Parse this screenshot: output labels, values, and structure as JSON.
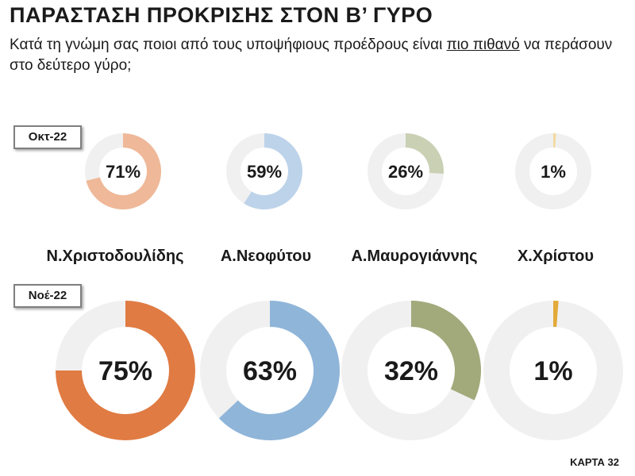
{
  "title": "ΠΑΡΑΣΤΑΣΗ ΠΡΟΚΡΙΣΗΣ ΣΤΟΝ Β’ ΓΥΡΟ",
  "subtitle": {
    "before": "Κατά τη γνώμη σας ποιοι από τους υποψήφιους προέδρους είναι ",
    "underlined": "πιο πιθανό",
    "after": " να περάσουν στο δεύτερο γύρο;"
  },
  "footer": "ΚΑΡΤΑ 32",
  "track_color": "#f0f0f0",
  "chart_data": {
    "type": "donut",
    "periods": [
      "Οκτ-22",
      "Νοέ-22"
    ],
    "candidates": [
      {
        "name": "Ν.Χριστοδουλίδης",
        "color_oct": "#efb898",
        "color_nov": "#e07b43",
        "values": [
          71,
          75
        ],
        "labels": [
          "71%",
          "75%"
        ]
      },
      {
        "name": "Α.Νεοφύτου",
        "color_oct": "#bdd3ea",
        "color_nov": "#8fb5d9",
        "values": [
          59,
          63
        ],
        "labels": [
          "59%",
          "63%"
        ]
      },
      {
        "name": "Α.Μαυρογιάννης",
        "color_oct": "#c9d0b4",
        "color_nov": "#a2aa7c",
        "values": [
          26,
          32
        ],
        "labels": [
          "26%",
          "32%"
        ]
      },
      {
        "name": "Χ.Χρίστου",
        "color_oct": "#f3d9a0",
        "color_nov": "#e3aa3a",
        "values": [
          1,
          1
        ],
        "labels": [
          "1%",
          "1%"
        ]
      }
    ]
  }
}
